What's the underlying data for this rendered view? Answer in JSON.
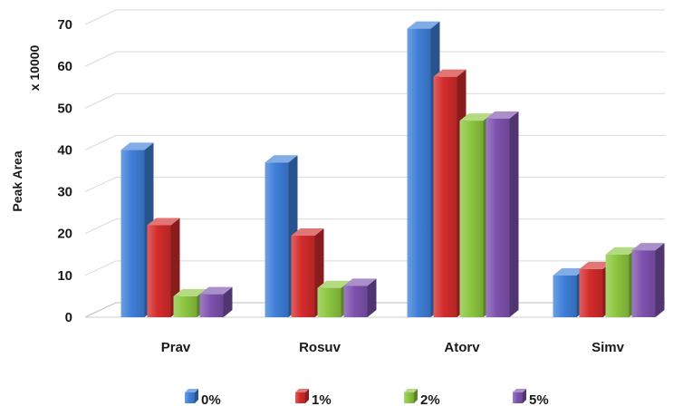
{
  "chart_data": {
    "type": "bar",
    "title": "",
    "xlabel": "",
    "ylabel": "Peak Area",
    "y_multiplier_label": "x 10000",
    "ylim": [
      0,
      70
    ],
    "yticks": [
      0,
      10,
      20,
      30,
      40,
      50,
      60,
      70
    ],
    "grid": true,
    "legend_position": "bottom",
    "style": "3d-clustered",
    "categories": [
      "Prav",
      "Rosuv",
      "Atorv",
      "Simv"
    ],
    "series": [
      {
        "name": "0%",
        "color": "#3e7fd8",
        "values": [
          40,
          37,
          69,
          10
        ]
      },
      {
        "name": "1%",
        "color": "#d32b2b",
        "values": [
          22,
          19.5,
          57.5,
          11.5
        ]
      },
      {
        "name": "2%",
        "color": "#8cc63f",
        "values": [
          5,
          7,
          47,
          15
        ]
      },
      {
        "name": "5%",
        "color": "#7d52ae",
        "values": [
          5.5,
          7.5,
          47.5,
          16
        ]
      }
    ]
  }
}
